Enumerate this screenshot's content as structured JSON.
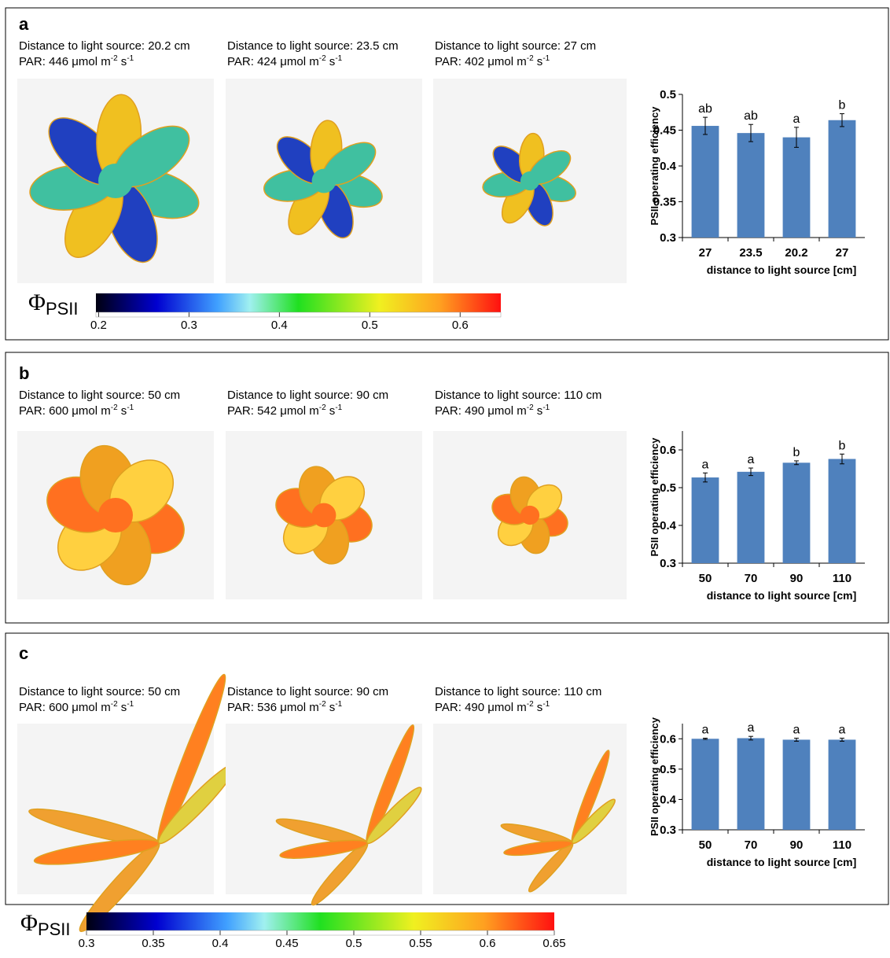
{
  "panels": [
    {
      "label": "a",
      "captions": [
        {
          "distance": "Distance to light source: 20.2 cm",
          "par": [
            "PAR: 446 μmol m",
            "-2",
            " s",
            "-1"
          ]
        },
        {
          "distance": "Distance to light source: 23.5 cm",
          "par": [
            "PAR: 424 μmol m",
            "-2",
            " s",
            "-1"
          ]
        },
        {
          "distance": "Distance to light source: 27 cm",
          "par": [
            "PAR: 402 μmol m",
            "-2",
            " s",
            "-1"
          ]
        }
      ]
    },
    {
      "label": "b",
      "captions": [
        {
          "distance": "Distance to light source: 50 cm",
          "par": [
            "PAR: 600 μmol m",
            "-2",
            " s",
            "-1"
          ]
        },
        {
          "distance": "Distance to light source: 90 cm",
          "par": [
            "PAR: 542 μmol m",
            "-2",
            " s",
            "-1"
          ]
        },
        {
          "distance": "Distance to light source: 110 cm",
          "par": [
            "PAR: 490 μmol m",
            "-2",
            " s",
            "-1"
          ]
        }
      ]
    },
    {
      "label": "c",
      "captions": [
        {
          "distance": "Distance to light source: 50 cm",
          "par": [
            "PAR: 600 μmol m",
            "-2",
            " s",
            "-1"
          ]
        },
        {
          "distance": "Distance to light source: 90 cm",
          "par": [
            "PAR: 536 μmol m",
            "-2",
            " s",
            "-1"
          ]
        },
        {
          "distance": "Distance to light source: 110 cm",
          "par": [
            "PAR: 490 μmol m",
            "-2",
            " s",
            "-1"
          ]
        }
      ]
    }
  ],
  "colorbars": [
    {
      "symbol": "Φ",
      "subscript": "PSII",
      "lim": [
        0.197,
        0.645
      ],
      "ticks": [
        0.2,
        0.3,
        0.4,
        0.5,
        0.6
      ]
    },
    {
      "symbol": "Φ",
      "subscript": "PSII",
      "lim": [
        0.3,
        0.65
      ],
      "ticks": [
        0.3,
        0.35,
        0.4,
        0.45,
        0.5,
        0.55,
        0.6,
        0.65
      ]
    }
  ],
  "chart_data": [
    {
      "type": "bar",
      "ylabel": "PSII operating efficiency",
      "xlabel": "distance to light source [cm]",
      "categories": [
        "27",
        "23.5",
        "20.2",
        "27"
      ],
      "values": [
        0.456,
        0.446,
        0.44,
        0.464
      ],
      "errors": [
        0.012,
        0.012,
        0.014,
        0.009
      ],
      "annotations": [
        "ab",
        "ab",
        "a",
        "b"
      ],
      "color": "#4f81bd",
      "ylim": [
        0.3,
        0.5
      ],
      "yticks": [
        0.3,
        0.35,
        0.4,
        0.45,
        0.5
      ]
    },
    {
      "type": "bar",
      "ylabel": "PSII operating efficiency",
      "xlabel": "distance to light source [cm]",
      "categories": [
        "50",
        "70",
        "90",
        "110"
      ],
      "values": [
        0.527,
        0.542,
        0.566,
        0.576
      ],
      "errors": [
        0.012,
        0.01,
        0.005,
        0.013
      ],
      "annotations": [
        "a",
        "a",
        "b",
        "b"
      ],
      "color": "#4f81bd",
      "ylim": [
        0.3,
        0.65
      ],
      "yticks": [
        0.3,
        0.4,
        0.5,
        0.6
      ]
    },
    {
      "type": "bar",
      "ylabel": "PSII operating efficiency",
      "xlabel": "distance to light source [cm]",
      "categories": [
        "50",
        "70",
        "90",
        "110"
      ],
      "values": [
        0.6,
        0.602,
        0.597,
        0.597
      ],
      "errors": [
        0.002,
        0.006,
        0.005,
        0.005
      ],
      "annotations": [
        "a",
        "a",
        "a",
        "a"
      ],
      "color": "#4f81bd",
      "ylim": [
        0.3,
        0.65
      ],
      "yticks": [
        0.3,
        0.4,
        0.5,
        0.6
      ]
    }
  ]
}
